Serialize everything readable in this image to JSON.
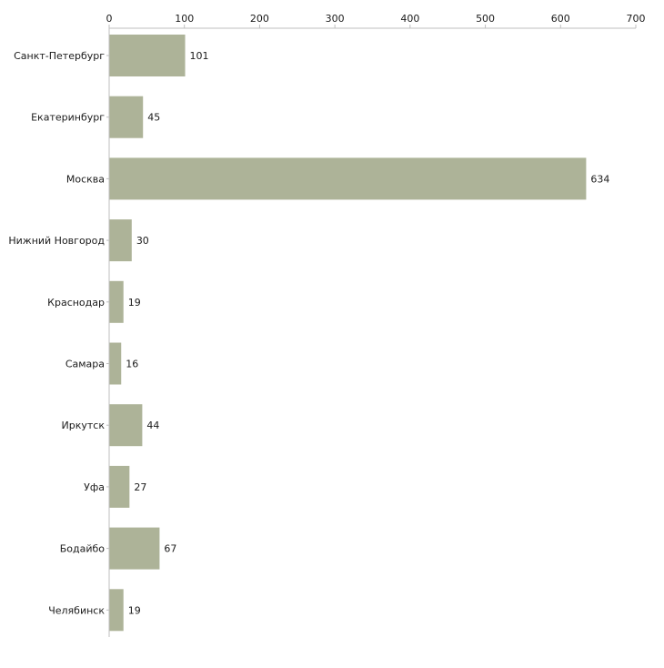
{
  "chart_data": {
    "type": "bar",
    "orientation": "horizontal",
    "title": "",
    "xlabel": "",
    "ylabel": "",
    "xlim": [
      0,
      700
    ],
    "x_ticks": [
      0,
      100,
      200,
      300,
      400,
      500,
      600,
      700
    ],
    "x_axis_position": "top",
    "grid": false,
    "legend": "none",
    "categories": [
      "Санкт-Петербург",
      "Екатеринбург",
      "Москва",
      "Нижний Новгород",
      "Краснодар",
      "Самара",
      "Иркутск",
      "Уфа",
      "Бодайбо",
      "Челябинск"
    ],
    "values": [
      101,
      45,
      634,
      30,
      19,
      16,
      44,
      27,
      67,
      19
    ],
    "bar_color": "#adb398",
    "axis_color": "#bfbfbf"
  }
}
